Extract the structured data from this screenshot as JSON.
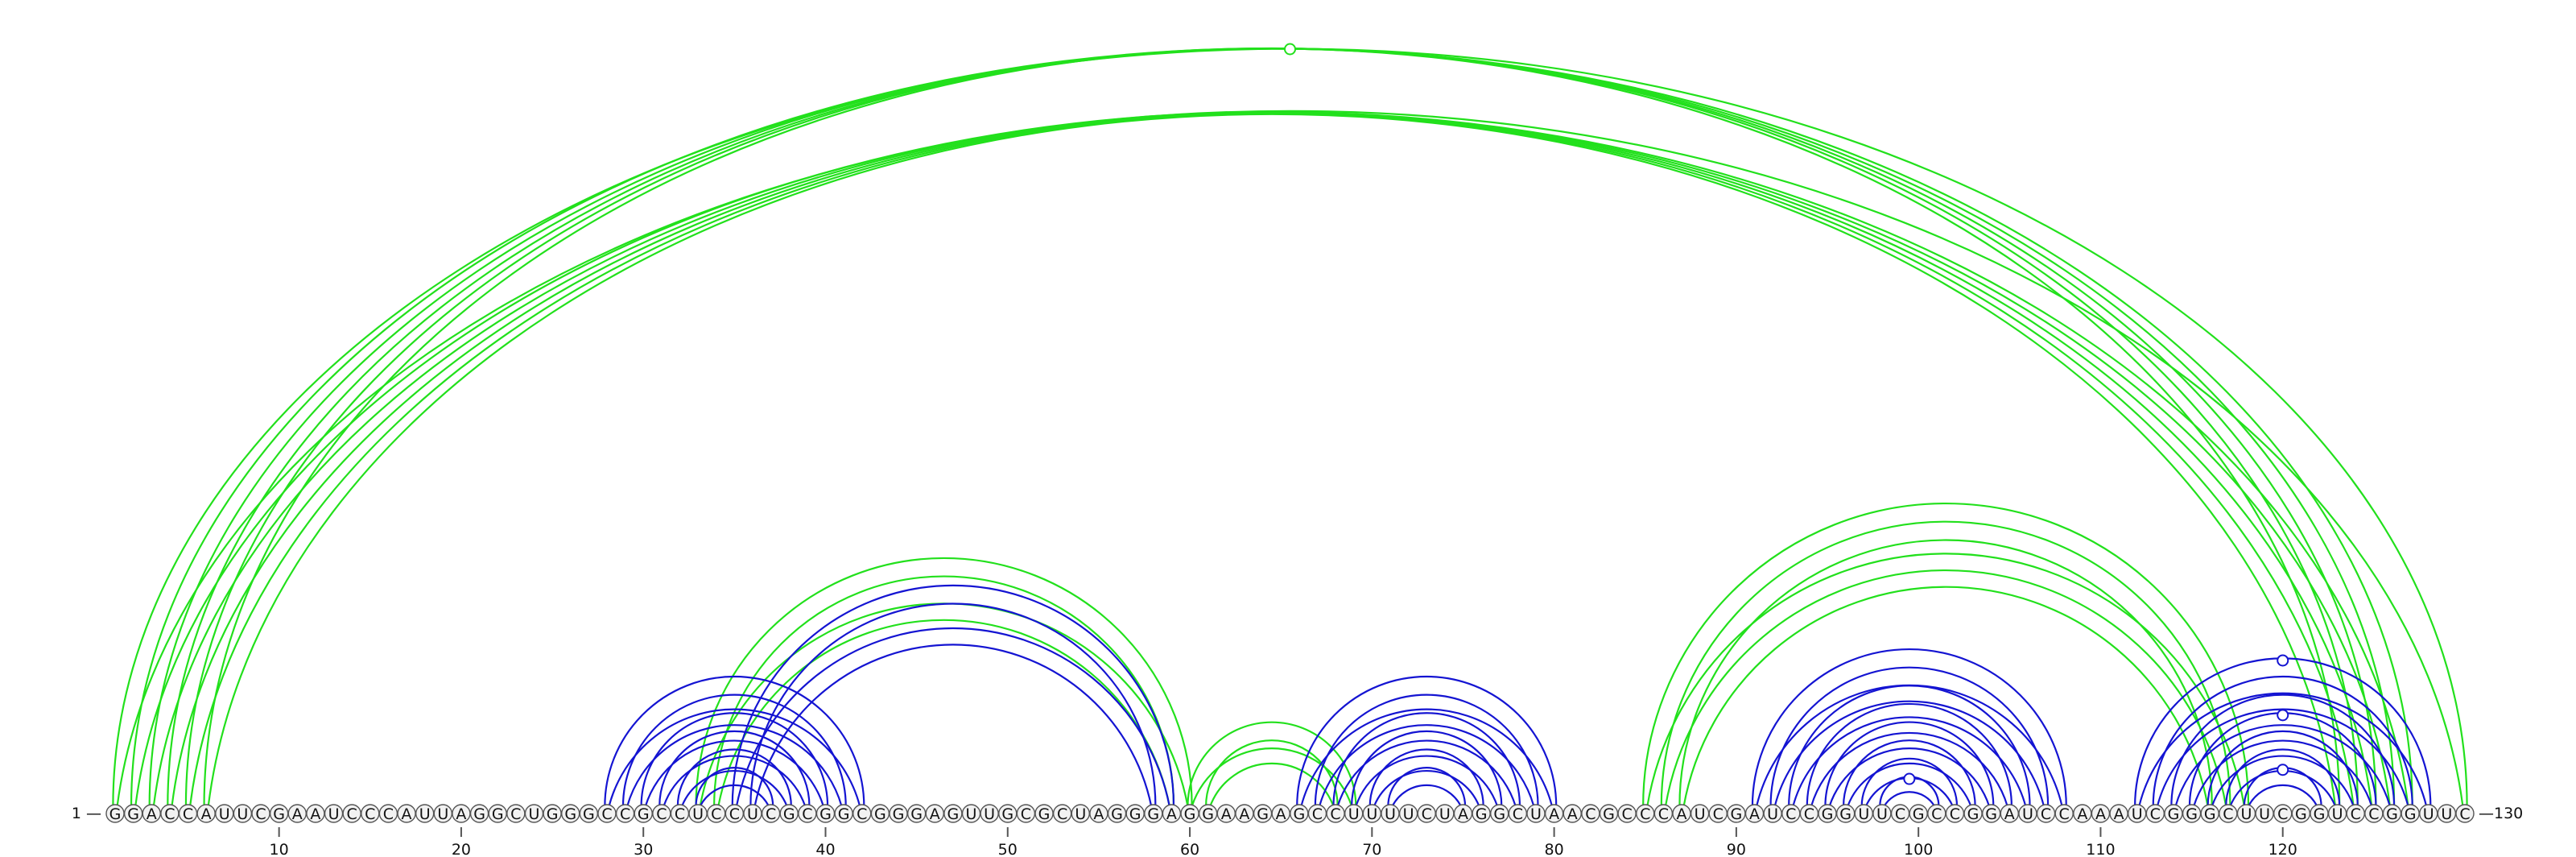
{
  "diagram": {
    "sequence": "GGACCAUUCGAAUCCCAUUAGGCUGGGCCGCCUCCUCGCGGCGGGAGUUGCGCUAGGGAGGAAGAGCCUUUUCUAGGCUAACGCCCAUCGAUCCGGUUCGCCGGAUCCAAAUCGGGCUUCGGUCCGGUUC",
    "start_label": "1 —",
    "end_label": "—130",
    "tick_labels": [
      "10",
      "20",
      "30",
      "40",
      "50",
      "60",
      "70",
      "80",
      "90",
      "100",
      "110",
      "120"
    ],
    "tick_positions": [
      10,
      20,
      30,
      40,
      50,
      60,
      70,
      80,
      90,
      100,
      110,
      120
    ],
    "colors": {
      "green": "#22e01c",
      "blue": "#1414d2",
      "nucleotide_fill": "#f2f2f2",
      "nucleotide_stroke": "#555555"
    },
    "arc_groups": [
      {
        "color": "green",
        "pairs": [
          [
            1,
            130
          ],
          [
            2,
            127
          ],
          [
            3,
            126
          ],
          [
            4,
            125
          ],
          [
            5,
            124
          ],
          [
            6,
            123
          ]
        ]
      },
      {
        "color": "green",
        "pairs": [
          [
            33,
            60
          ],
          [
            34,
            59
          ]
        ]
      },
      {
        "color": "blue",
        "pairs": [
          [
            28,
            42
          ],
          [
            29,
            41
          ],
          [
            30,
            40
          ],
          [
            31,
            39
          ],
          [
            32,
            38
          ],
          [
            33,
            37
          ]
        ]
      },
      {
        "color": "blue",
        "pairs": [
          [
            35,
            59
          ],
          [
            36,
            58
          ]
        ]
      },
      {
        "color": "green",
        "pairs": [
          [
            60,
            69
          ],
          [
            61,
            68
          ]
        ]
      },
      {
        "color": "blue",
        "pairs": [
          [
            66,
            80
          ],
          [
            67,
            79
          ],
          [
            68,
            78
          ],
          [
            69,
            77
          ],
          [
            70,
            76
          ],
          [
            71,
            75
          ]
        ]
      },
      {
        "color": "green",
        "pairs": [
          [
            85,
            118
          ],
          [
            86,
            117
          ],
          [
            87,
            116
          ]
        ]
      },
      {
        "color": "blue",
        "pairs": [
          [
            91,
            108
          ],
          [
            92,
            107
          ],
          [
            93,
            106
          ],
          [
            94,
            105
          ],
          [
            95,
            104
          ],
          [
            96,
            103
          ],
          [
            97,
            102
          ],
          [
            98,
            101
          ]
        ]
      },
      {
        "color": "blue",
        "pairs": [
          [
            112,
            128
          ],
          [
            113,
            127
          ],
          [
            114,
            126
          ],
          [
            115,
            125
          ],
          [
            116,
            124
          ],
          [
            117,
            123
          ],
          [
            118,
            122
          ]
        ]
      }
    ]
  }
}
